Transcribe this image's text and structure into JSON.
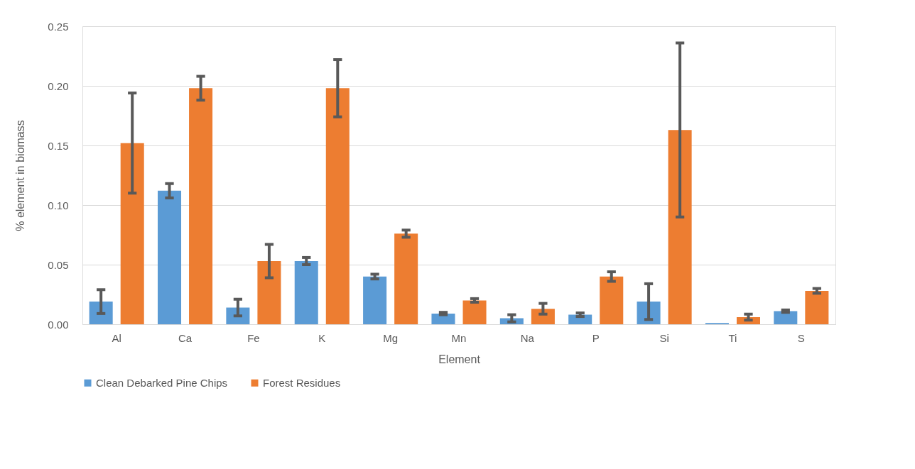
{
  "chart_data": {
    "type": "bar",
    "xlabel": "Element",
    "ylabel": "% element in biomass",
    "categories": [
      "Al",
      "Ca",
      "Fe",
      "K",
      "Mg",
      "Mn",
      "Na",
      "P",
      "Si",
      "Ti",
      "S"
    ],
    "series": [
      {
        "name": "Clean Debarked Pine Chips",
        "color": "#5b9bd5",
        "values": [
          0.019,
          0.112,
          0.014,
          0.053,
          0.04,
          0.009,
          0.005,
          0.008,
          0.019,
          0.001,
          0.011
        ],
        "errors": [
          0.01,
          0.006,
          0.007,
          0.003,
          0.002,
          0.001,
          0.003,
          0.0015,
          0.015,
          null,
          0.001
        ]
      },
      {
        "name": "Forest Residues",
        "color": "#ed7d31",
        "values": [
          0.152,
          0.198,
          0.053,
          0.198,
          0.076,
          0.02,
          0.013,
          0.04,
          0.163,
          0.006,
          0.028
        ],
        "errors": [
          0.042,
          0.01,
          0.014,
          0.024,
          0.003,
          0.0015,
          0.0045,
          0.004,
          0.073,
          0.0025,
          0.002
        ]
      }
    ],
    "ylim": [
      0,
      0.25
    ],
    "yticks": [
      {
        "value": 0,
        "label": "0.00"
      },
      {
        "value": 0.05,
        "label": "0.05"
      },
      {
        "value": 0.1,
        "label": "0.10"
      },
      {
        "value": 0.15,
        "label": "0.15"
      },
      {
        "value": 0.2,
        "label": "0.20"
      },
      {
        "value": 0.25,
        "label": "0.25"
      }
    ],
    "grid": "y",
    "legend": "bottom"
  }
}
